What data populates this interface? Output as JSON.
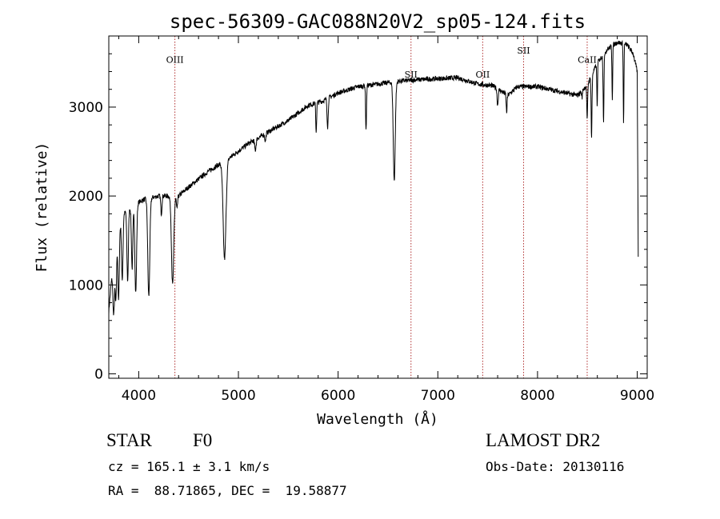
{
  "chart_data": {
    "type": "line",
    "title": "spec-56309-GAC088N20V2_sp05-124.fits",
    "xlabel": "Wavelength (Å)",
    "ylabel": "Flux (relative)",
    "xlim": [
      3700,
      9100
    ],
    "ylim": [
      -50,
      3800
    ],
    "xticks": [
      4000,
      5000,
      6000,
      7000,
      8000,
      9000
    ],
    "yticks": [
      0,
      1000,
      2000,
      3000
    ],
    "continuum": [
      [
        3700,
        700
      ],
      [
        3760,
        1500
      ],
      [
        3850,
        1800
      ],
      [
        3950,
        1900
      ],
      [
        4050,
        1960
      ],
      [
        4200,
        2000
      ],
      [
        4400,
        2000
      ],
      [
        4500,
        2100
      ],
      [
        4700,
        2280
      ],
      [
        4900,
        2420
      ],
      [
        5100,
        2590
      ],
      [
        5300,
        2720
      ],
      [
        5500,
        2850
      ],
      [
        5700,
        3020
      ],
      [
        5850,
        3070
      ],
      [
        6000,
        3160
      ],
      [
        6200,
        3230
      ],
      [
        6400,
        3260
      ],
      [
        6600,
        3290
      ],
      [
        6800,
        3310
      ],
      [
        7000,
        3320
      ],
      [
        7200,
        3330
      ],
      [
        7400,
        3260
      ],
      [
        7550,
        3240
      ],
      [
        7650,
        3170
      ],
      [
        7700,
        3130
      ],
      [
        7800,
        3230
      ],
      [
        8000,
        3230
      ],
      [
        8200,
        3180
      ],
      [
        8400,
        3130
      ],
      [
        8500,
        3250
      ],
      [
        8600,
        3500
      ],
      [
        8700,
        3650
      ],
      [
        8800,
        3730
      ],
      [
        8900,
        3700
      ],
      [
        8960,
        3600
      ],
      [
        9000,
        3400
      ],
      [
        9010,
        1300
      ]
    ],
    "absorption_lines": [
      {
        "wave": 3750,
        "depth": 700,
        "width": 12
      },
      {
        "wave": 3771,
        "depth": 700,
        "width": 10
      },
      {
        "wave": 3798,
        "depth": 800,
        "width": 10
      },
      {
        "wave": 3835,
        "depth": 700,
        "width": 10
      },
      {
        "wave": 3889,
        "depth": 800,
        "width": 10
      },
      {
        "wave": 3934,
        "depth": 700,
        "width": 10
      },
      {
        "wave": 3970,
        "depth": 1000,
        "width": 12
      },
      {
        "wave": 4101,
        "depth": 1100,
        "width": 14
      },
      {
        "wave": 4227,
        "depth": 200,
        "width": 8
      },
      {
        "wave": 4340,
        "depth": 1000,
        "width": 16
      },
      {
        "wave": 4384,
        "depth": 150,
        "width": 8
      },
      {
        "wave": 4861,
        "depth": 1100,
        "width": 20
      },
      {
        "wave": 5170,
        "depth": 120,
        "width": 10
      },
      {
        "wave": 5270,
        "depth": 80,
        "width": 8
      },
      {
        "wave": 5780,
        "depth": 330,
        "width": 6
      },
      {
        "wave": 5895,
        "depth": 320,
        "width": 8
      },
      {
        "wave": 6280,
        "depth": 500,
        "width": 6
      },
      {
        "wave": 6563,
        "depth": 1100,
        "width": 14
      },
      {
        "wave": 7600,
        "depth": 180,
        "width": 8
      },
      {
        "wave": 7690,
        "depth": 200,
        "width": 6
      },
      {
        "wave": 8446,
        "depth": 80,
        "width": 6
      },
      {
        "wave": 8498,
        "depth": 400,
        "width": 6
      },
      {
        "wave": 8542,
        "depth": 700,
        "width": 6
      },
      {
        "wave": 8598,
        "depth": 500,
        "width": 5
      },
      {
        "wave": 8662,
        "depth": 750,
        "width": 6
      },
      {
        "wave": 8750,
        "depth": 600,
        "width": 5
      },
      {
        "wave": 8863,
        "depth": 900,
        "width": 5
      }
    ],
    "reference_lines": [
      {
        "label": "OIII",
        "wave": 4363,
        "label_flux": 3500
      },
      {
        "label": "SII",
        "wave": 6731,
        "label_flux": 3330
      },
      {
        "label": "OII",
        "wave": 7450,
        "label_flux": 3330
      },
      {
        "label": "SII",
        "wave": 7860,
        "label_flux": 3600
      },
      {
        "label": "CaII",
        "wave": 8498,
        "label_flux": 3500
      }
    ],
    "colors": {
      "spectrum": "#000000",
      "reference": "#b03030"
    }
  },
  "info": {
    "object_class": "STAR",
    "subclass": "F0",
    "survey": "LAMOST DR2",
    "redshift": "cz = 165.1 ± 3.1 km/s",
    "obs_date": "Obs-Date: 20130116",
    "coords": "RA =  88.71865, DEC =  19.58877"
  }
}
